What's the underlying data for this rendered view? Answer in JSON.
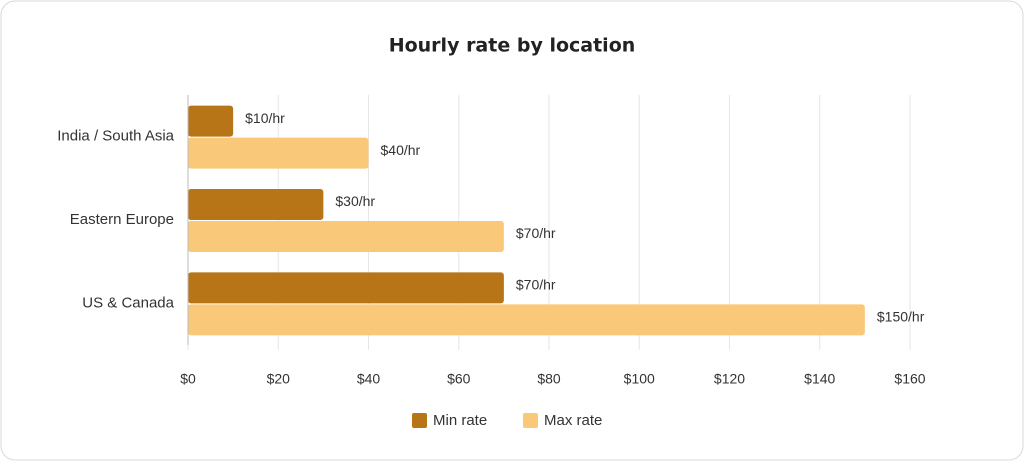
{
  "chart_data": {
    "type": "bar",
    "orientation": "horizontal",
    "title": "Hourly rate by location",
    "categories": [
      "India / South Asia",
      "Eastern Europe",
      "US & Canada"
    ],
    "series": [
      {
        "name": "Min rate",
        "color": "#b87518",
        "values": [
          10,
          30,
          70
        ],
        "value_labels": [
          "$10/hr",
          "$30/hr",
          "$70/hr"
        ]
      },
      {
        "name": "Max rate",
        "color": "#f9c878",
        "values": [
          40,
          70,
          150
        ],
        "value_labels": [
          "$40/hr",
          "$70/hr",
          "$150/hr"
        ]
      }
    ],
    "xlim": [
      0,
      160
    ],
    "xticks": [
      {
        "value": 0,
        "label": "$0"
      },
      {
        "value": 20,
        "label": "$20"
      },
      {
        "value": 40,
        "label": "$40"
      },
      {
        "value": 60,
        "label": "$60"
      },
      {
        "value": 80,
        "label": "$80"
      },
      {
        "value": 100,
        "label": "$100"
      },
      {
        "value": 120,
        "label": "$120"
      },
      {
        "value": 140,
        "label": "$140"
      },
      {
        "value": 160,
        "label": "$160"
      }
    ],
    "grid": true,
    "legend": "bottom"
  }
}
